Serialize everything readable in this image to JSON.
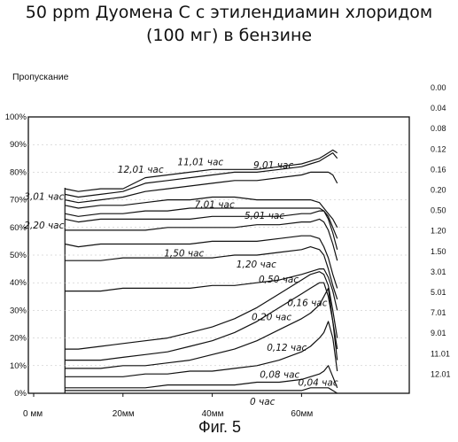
{
  "title_line1": "50 ppm Дуомена С с этилендиамин хлоридом",
  "title_line2": "(100 мг) в бензине",
  "caption": "Фиг. 5",
  "chart_data": {
    "type": "line",
    "ylabel": "Пропускание",
    "ylim": [
      0,
      100
    ],
    "xlim": [
      0,
      70
    ],
    "yticks": [
      "0%",
      "10%",
      "20%",
      "30%",
      "40%",
      "50%",
      "60%",
      "70%",
      "80%",
      "90%",
      "100%"
    ],
    "xticks": [
      {
        "value": 0,
        "label": "0 мм"
      },
      {
        "value": 20,
        "label": "20мм"
      },
      {
        "value": 40,
        "label": "40мм"
      },
      {
        "value": 60,
        "label": "60мм"
      }
    ],
    "right_legend": [
      "0.00",
      "0.04",
      "0.08",
      "0.12",
      "0.16",
      "0.20",
      "0.50",
      "1.20",
      "1.50",
      "3.01",
      "5.01",
      "7.01",
      "9.01",
      "11.01",
      "12.01"
    ],
    "x": [
      7,
      10,
      15,
      20,
      25,
      30,
      35,
      40,
      45,
      50,
      55,
      60,
      62,
      64,
      65,
      66,
      67,
      68
    ],
    "series": [
      {
        "name": "12,01 час",
        "values": [
          74,
          73,
          74,
          74,
          78,
          79,
          80,
          81,
          81,
          81,
          82,
          83,
          84,
          85,
          86,
          87,
          88,
          87
        ]
      },
      {
        "name": "11,01 час",
        "values": [
          72,
          71,
          72,
          73,
          76,
          77,
          78,
          79,
          80,
          80,
          81,
          82,
          83,
          84,
          85,
          86,
          87,
          85
        ]
      },
      {
        "name": "9,01 час",
        "values": [
          70,
          69,
          70,
          71,
          73,
          74,
          75,
          76,
          77,
          77,
          78,
          79,
          80,
          80,
          80,
          80,
          79,
          76
        ]
      },
      {
        "name": "7,01 час",
        "values": [
          68,
          67,
          68,
          68,
          69,
          70,
          70,
          71,
          71,
          70,
          70,
          70,
          70,
          69,
          67,
          65,
          63,
          60
        ]
      },
      {
        "name": "5,01 час",
        "values": [
          65,
          64,
          65,
          65,
          66,
          66,
          67,
          67,
          67,
          67,
          67,
          67,
          67,
          67,
          66,
          64,
          60,
          56
        ]
      },
      {
        "name": "3,01 час",
        "values": [
          63,
          62,
          63,
          63,
          63,
          63,
          63,
          64,
          64,
          64,
          64,
          65,
          65,
          66,
          66,
          63,
          58,
          52
        ]
      },
      {
        "name": "2,20 час",
        "values": [
          59,
          59,
          59,
          59,
          59,
          60,
          60,
          60,
          60,
          61,
          61,
          62,
          62,
          63,
          62,
          59,
          54,
          48
        ]
      },
      {
        "name": "1,50 час",
        "values": [
          54,
          53,
          54,
          54,
          54,
          54,
          54,
          55,
          55,
          55,
          56,
          57,
          57,
          56,
          53,
          49,
          43,
          38
        ]
      },
      {
        "name": "1,20 час",
        "values": [
          48,
          48,
          48,
          49,
          49,
          49,
          49,
          49,
          50,
          50,
          51,
          52,
          53,
          52,
          50,
          45,
          39,
          34
        ]
      },
      {
        "name": "0,50 час",
        "values": [
          37,
          37,
          37,
          38,
          38,
          38,
          38,
          39,
          39,
          40,
          41,
          43,
          44,
          45,
          45,
          42,
          37,
          30
        ]
      },
      {
        "name": "0,20 час",
        "values": [
          16,
          16,
          17,
          18,
          19,
          20,
          22,
          24,
          27,
          31,
          36,
          41,
          43,
          44,
          43,
          39,
          30,
          20
        ]
      },
      {
        "name": "0,16 час",
        "values": [
          12,
          12,
          12,
          13,
          14,
          15,
          17,
          19,
          22,
          26,
          31,
          36,
          38,
          40,
          40,
          35,
          26,
          16
        ]
      },
      {
        "name": "0,12 час",
        "values": [
          9,
          9,
          9,
          10,
          10,
          11,
          12,
          14,
          16,
          19,
          23,
          27,
          29,
          32,
          35,
          38,
          26,
          12
        ]
      },
      {
        "name": "0,08 час",
        "values": [
          6,
          6,
          6,
          6,
          7,
          7,
          8,
          8,
          9,
          10,
          12,
          15,
          17,
          20,
          22,
          26,
          20,
          8
        ]
      },
      {
        "name": "0,04 час",
        "values": [
          2,
          2,
          2,
          2,
          2,
          3,
          3,
          3,
          3,
          4,
          4,
          5,
          6,
          7,
          8,
          10,
          6,
          2
        ]
      },
      {
        "name": "0 час",
        "values": [
          1,
          1,
          1,
          1,
          1,
          1,
          1,
          1,
          1,
          1,
          1,
          1,
          2,
          2,
          2,
          2,
          1,
          0
        ]
      }
    ]
  }
}
